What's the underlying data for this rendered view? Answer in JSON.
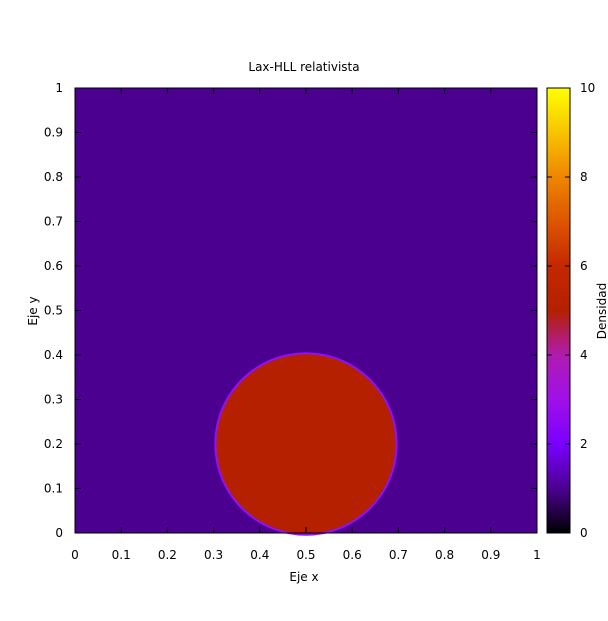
{
  "chart_data": {
    "type": "heatmap",
    "title": "Lax-HLL relativista",
    "xlabel": "Eje x",
    "ylabel": "Eje y",
    "xlim": [
      0,
      1
    ],
    "ylim": [
      0,
      1
    ],
    "xticks": [
      "0",
      "0.1",
      "0.2",
      "0.3",
      "0.4",
      "0.5",
      "0.6",
      "0.7",
      "0.8",
      "0.9",
      "1"
    ],
    "yticks": [
      "0",
      "0.1",
      "0.2",
      "0.3",
      "0.4",
      "0.5",
      "0.6",
      "0.7",
      "0.8",
      "0.9",
      "1"
    ],
    "background_value": 1,
    "circle": {
      "center_x": 0.5,
      "center_y": 0.2,
      "radius": 0.2,
      "value": 5.3
    },
    "grid": false,
    "colorbar": {
      "label": "Densidad",
      "range": [
        0,
        10
      ],
      "ticks": [
        "0",
        "2",
        "4",
        "6",
        "8",
        "10"
      ],
      "colormap": [
        {
          "value": 0,
          "color": "#000000"
        },
        {
          "value": 1,
          "color": "#4b0090"
        },
        {
          "value": 2,
          "color": "#7a00ff"
        },
        {
          "value": 3,
          "color": "#a010e8"
        },
        {
          "value": 4,
          "color": "#b01bb0"
        },
        {
          "value": 5,
          "color": "#b42000"
        },
        {
          "value": 6,
          "color": "#c52800"
        },
        {
          "value": 7,
          "color": "#dd5500"
        },
        {
          "value": 8,
          "color": "#ee8600"
        },
        {
          "value": 9,
          "color": "#f8c400"
        },
        {
          "value": 10,
          "color": "#ffff00"
        }
      ]
    },
    "colors": {
      "background_field": "#4b0090",
      "circle_fill": "#b42000",
      "circle_edge": "#8f10ff"
    }
  }
}
